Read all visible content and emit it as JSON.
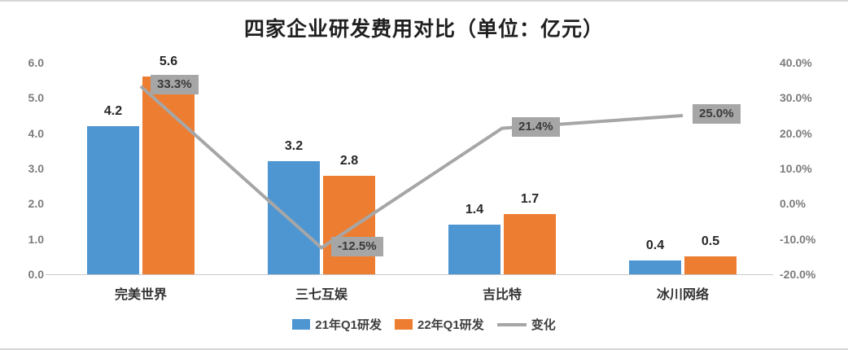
{
  "chart_data": {
    "type": "bar",
    "title": "四家企业研发费用对比（单位：亿元）",
    "categories": [
      "完美世界",
      "三七互娱",
      "吉比特",
      "冰川网络"
    ],
    "series": [
      {
        "name": "21年Q1研发",
        "type": "bar",
        "color": "#4e96d2",
        "values": [
          4.2,
          3.2,
          1.4,
          0.4
        ]
      },
      {
        "name": "22年Q1研发",
        "type": "bar",
        "color": "#ed7d31",
        "values": [
          5.6,
          2.8,
          1.7,
          0.5
        ]
      },
      {
        "name": "变化",
        "type": "line",
        "color": "#a6a6a6",
        "values_pct": [
          33.3,
          -12.5,
          21.4,
          25.0
        ],
        "labels": [
          "33.3%",
          "-12.5%",
          "21.4%",
          "25.0%"
        ]
      }
    ],
    "left_axis": {
      "min": 0,
      "max": 6,
      "step": 1,
      "ticks": [
        "6.0",
        "5.0",
        "4.0",
        "3.0",
        "2.0",
        "1.0",
        "0.0"
      ]
    },
    "right_axis": {
      "min": -20,
      "max": 40,
      "step": 10,
      "ticks": [
        "40.0%",
        "30.0%",
        "20.0%",
        "10.0%",
        "0.0%",
        "-10.0%",
        "-20.0%"
      ]
    },
    "legend": [
      {
        "label": "21年Q1研发",
        "color": "#4e96d2",
        "marker": "rect"
      },
      {
        "label": "22年Q1研发",
        "color": "#ed7d31",
        "marker": "rect"
      },
      {
        "label": "变化",
        "color": "#a6a6a6",
        "marker": "line"
      }
    ],
    "grid": "off",
    "legend_position": "bottom"
  }
}
